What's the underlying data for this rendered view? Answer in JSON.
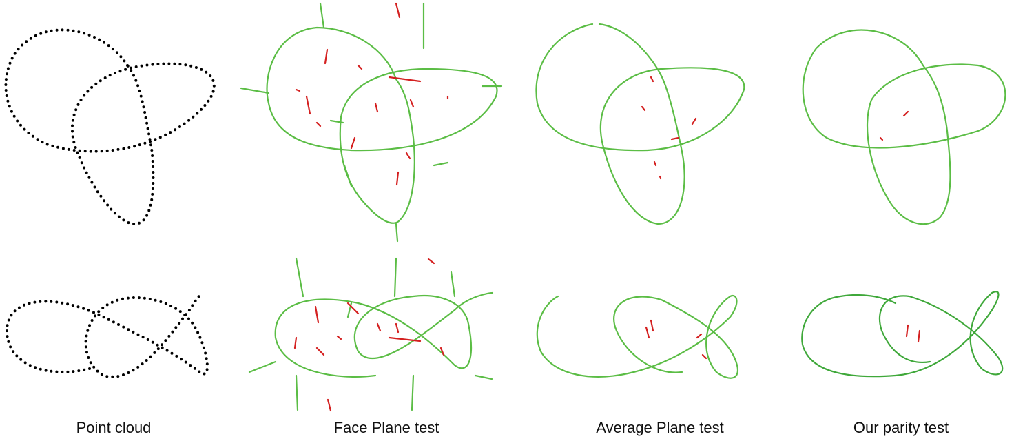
{
  "figure": {
    "captions": [
      "Point cloud",
      "Face Plane test",
      "Average Plane test",
      "Our parity test"
    ],
    "colors": {
      "points": "#000000",
      "curve": "#5bbd45",
      "curve_dark": "#3fa83a",
      "error": "#d42020",
      "background": "#ffffff"
    },
    "rows": [
      "trefoil-knot",
      "fish-knot"
    ]
  }
}
